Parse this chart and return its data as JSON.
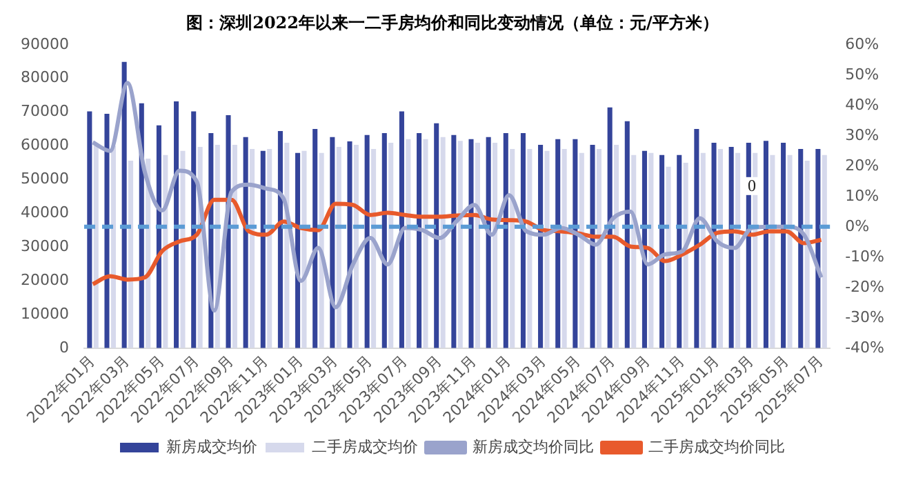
{
  "chart_data": {
    "type": "bar",
    "title": "图：深圳2022年以来一二手房均价和同比变动情况（单位：元/平方米）",
    "categories": [
      "2022年01月",
      null,
      "2022年03月",
      null,
      "2022年05月",
      null,
      "2022年07月",
      null,
      "2022年09月",
      null,
      "2022年11月",
      null,
      "2023年01月",
      null,
      "2023年03月",
      null,
      "2023年05月",
      null,
      "2023年07月",
      null,
      "2023年09月",
      null,
      "2023年11月",
      null,
      "2024年01月",
      null,
      "2024年03月",
      null,
      "2024年05月",
      null,
      "2024年07月",
      null,
      "2024年09月",
      null,
      "2024年11月",
      null,
      "2025年01月",
      null,
      "2025年03月",
      null,
      "2025年05月",
      null,
      "2025年07月"
    ],
    "series": [
      {
        "name": "新房成交均价",
        "color": "#34449a",
        "values": [
          70200,
          69500,
          84900,
          72600,
          66100,
          73200,
          70200,
          63800,
          69100,
          62600,
          58500,
          64400,
          57900,
          65000,
          62600,
          61300,
          63200,
          63800,
          70200,
          63800,
          66700,
          63200,
          62000,
          62600,
          63800,
          63800,
          60300,
          62000,
          62000,
          60300,
          71400,
          67300,
          58500,
          57300,
          57300,
          65000,
          60900,
          59700,
          60900,
          61500,
          60900,
          59100,
          59100
        ]
      },
      {
        "name": "二手房成交均价",
        "color": "#d6d9ec",
        "values": [
          60100,
          60000,
          55600,
          56200,
          57300,
          58500,
          59700,
          60300,
          60300,
          59100,
          59100,
          60900,
          58500,
          57900,
          59700,
          60300,
          59100,
          60900,
          62000,
          62000,
          62600,
          61500,
          60900,
          60900,
          59100,
          59100,
          58500,
          59100,
          57900,
          59100,
          60300,
          57300,
          57900,
          53800,
          55000,
          57900,
          59100,
          57900,
          57900,
          57300,
          57300,
          55600,
          57300
        ]
      },
      {
        "name": "新房成交均价同比",
        "type": "line",
        "axis": "y2",
        "color": "#9aa3cc",
        "values": [
          27.8,
          25,
          47.4,
          18,
          5.4,
          18.5,
          14.8,
          -27.6,
          11.5,
          13.9,
          12.6,
          9.3,
          -17.8,
          -7,
          -26.5,
          -12.4,
          -3.7,
          -12.4,
          -0.4,
          -1.1,
          -3.7,
          2,
          7.2,
          -2.6,
          10.4,
          -1.5,
          -2.6,
          -0.4,
          -2.6,
          -5.9,
          2.8,
          5,
          -12.4,
          -9.1,
          -8,
          2.8,
          -4.8,
          -7,
          -0.4,
          0,
          0,
          -2.6,
          -16.7
        ]
      },
      {
        "name": "二手房成交均价同比",
        "type": "line",
        "axis": "y2",
        "color": "#e85a2c",
        "values": [
          -18.9,
          -16.3,
          -17.4,
          -16.7,
          -8,
          -4.8,
          -2.6,
          8.9,
          8.9,
          -1.5,
          -2.6,
          1.7,
          -0.4,
          -1.1,
          7.6,
          7.2,
          3.9,
          4.6,
          3.9,
          3.3,
          3.3,
          3.7,
          3.9,
          2.4,
          2.2,
          1.7,
          -1.1,
          -1.5,
          -2.2,
          -3.3,
          -3.3,
          -6.5,
          -7,
          -11.3,
          -9.1,
          -5.9,
          -2,
          -1.5,
          -2.6,
          -1.5,
          -1.5,
          -5.4,
          -4.3
        ]
      }
    ],
    "ylim": [
      0,
      90000
    ],
    "yticks": [
      0,
      10000,
      20000,
      30000,
      40000,
      50000,
      60000,
      70000,
      80000,
      90000
    ],
    "y2lim": [
      -40,
      60
    ],
    "y2ticks": [
      {
        "value": -40,
        "label": "-40%"
      },
      {
        "value": -30,
        "label": "-30%"
      },
      {
        "value": -20,
        "label": "-20%"
      },
      {
        "value": -10,
        "label": "-10%"
      },
      {
        "value": 0,
        "label": "0%"
      },
      {
        "value": 10,
        "label": "10%"
      },
      {
        "value": 20,
        "label": "20%"
      },
      {
        "value": 30,
        "label": "30%"
      },
      {
        "value": 40,
        "label": "40%"
      },
      {
        "value": 50,
        "label": "50%"
      },
      {
        "value": 60,
        "label": "60%"
      }
    ],
    "ref_lines": [
      {
        "axis": "y2",
        "value": 0,
        "color": "#5b9bd5",
        "line_style": "dashed"
      }
    ],
    "annotations": [
      "0"
    ],
    "legend": "bottom",
    "grid": false,
    "marker": "none",
    "line_style": "solid"
  }
}
